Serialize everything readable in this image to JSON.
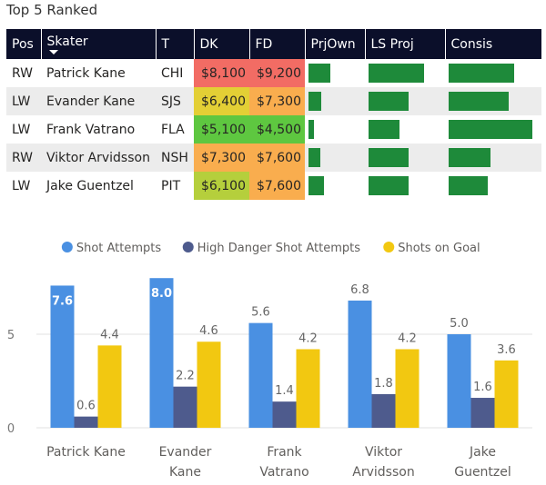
{
  "table": {
    "title": "Top 5 Ranked",
    "headers": [
      "Pos",
      "Skater",
      "T",
      "DK",
      "FD",
      "PrjOwn",
      "LS Proj",
      "Consis"
    ],
    "rows": [
      {
        "pos": "RW",
        "skater": "Patrick Kane",
        "team": "CHI",
        "dk": "$8,100",
        "fd": "$9,200",
        "dk_color": "#f26c64",
        "fd_color": "#f26c64",
        "prjown": 0.38,
        "lsproj": 0.73,
        "consis": 0.71
      },
      {
        "pos": "LW",
        "skater": "Evander Kane",
        "team": "SJS",
        "dk": "$6,400",
        "fd": "$7,300",
        "dk_color": "#e3cf35",
        "fd_color": "#f9ad4e",
        "prjown": 0.22,
        "lsproj": 0.52,
        "consis": 0.65
      },
      {
        "pos": "LW",
        "skater": "Frank Vatrano",
        "team": "FLA",
        "dk": "$5,100",
        "fd": "$4,500",
        "dk_color": "#5ec740",
        "fd_color": "#5ec740",
        "prjown": 0.1,
        "lsproj": 0.4,
        "consis": 0.9
      },
      {
        "pos": "RW",
        "skater": "Viktor Arvidsson",
        "team": "NSH",
        "dk": "$7,300",
        "fd": "$7,600",
        "dk_color": "#f9ad4e",
        "fd_color": "#f9ad4e",
        "prjown": 0.21,
        "lsproj": 0.52,
        "consis": 0.45
      },
      {
        "pos": "LW",
        "skater": "Jake Guentzel",
        "team": "PIT",
        "dk": "$6,100",
        "fd": "$7,600",
        "dk_color": "#b5cf3c",
        "fd_color": "#f9ad4e",
        "prjown": 0.28,
        "lsproj": 0.52,
        "consis": 0.42
      }
    ]
  },
  "chart_data": {
    "type": "bar",
    "categories": [
      "Patrick Kane",
      "Evander Kane",
      "Frank Vatrano",
      "Viktor Arvidsson",
      "Jake Guentzel"
    ],
    "category_lines": [
      [
        "Patrick Kane"
      ],
      [
        "Evander",
        "Kane"
      ],
      [
        "Frank",
        "Vatrano"
      ],
      [
        "Viktor",
        "Arvidsson"
      ],
      [
        "Jake",
        "Guentzel"
      ]
    ],
    "series": [
      {
        "name": "Shot Attempts",
        "color": "#4a90e2",
        "values": [
          7.6,
          8.0,
          5.6,
          6.8,
          5.0
        ],
        "labels": [
          "7.6",
          "8.0",
          "5.6",
          "6.8",
          "5.0"
        ],
        "label_inside": [
          true,
          true,
          false,
          false,
          false
        ]
      },
      {
        "name": "High Danger Shot Attempts",
        "color": "#4e5b8d",
        "values": [
          0.6,
          2.2,
          1.4,
          1.8,
          1.6
        ],
        "labels": [
          "0.6",
          "2.2",
          "1.4",
          "1.8",
          "1.6"
        ],
        "label_inside": [
          false,
          false,
          false,
          false,
          false
        ]
      },
      {
        "name": "Shots on Goal",
        "color": "#f2c811",
        "values": [
          4.4,
          4.6,
          4.2,
          4.2,
          3.6
        ],
        "labels": [
          "4.4",
          "4.6",
          "4.2",
          "4.2",
          "3.6"
        ],
        "label_inside": [
          false,
          false,
          false,
          false,
          false
        ]
      }
    ],
    "y_ticks": [
      0,
      5
    ],
    "y_tick_labels": [
      "0",
      "5"
    ],
    "ylim": [
      0,
      8
    ],
    "legend_position": "top-center",
    "title": "",
    "xlabel": "",
    "ylabel": ""
  }
}
